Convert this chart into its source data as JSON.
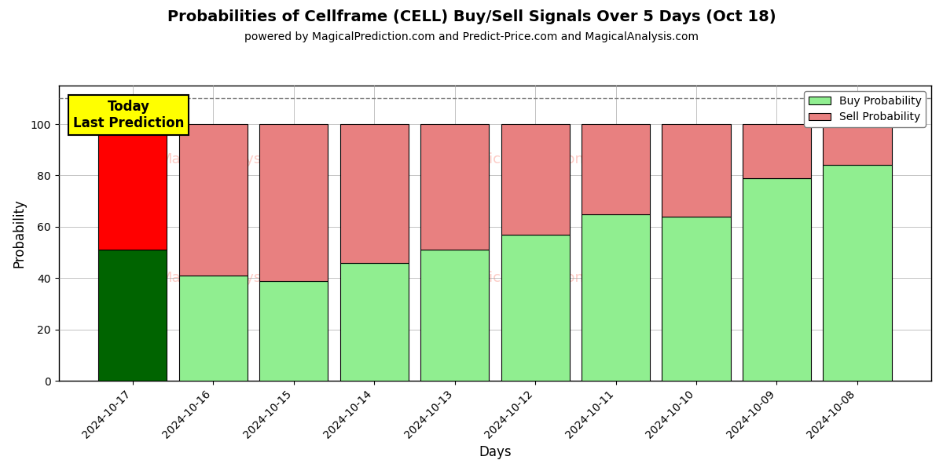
{
  "title": "Probabilities of Cellframe (CELL) Buy/Sell Signals Over 5 Days (Oct 18)",
  "subtitle": "powered by MagicalPrediction.com and Predict-Price.com and MagicalAnalysis.com",
  "xlabel": "Days",
  "ylabel": "Probability",
  "dates": [
    "2024-10-17",
    "2024-10-16",
    "2024-10-15",
    "2024-10-14",
    "2024-10-13",
    "2024-10-12",
    "2024-10-11",
    "2024-10-10",
    "2024-10-09",
    "2024-10-08"
  ],
  "buy_values": [
    51,
    41,
    39,
    46,
    51,
    57,
    65,
    64,
    79,
    84
  ],
  "sell_values": [
    49,
    59,
    61,
    54,
    49,
    43,
    35,
    36,
    21,
    16
  ],
  "today_bar_buy_color": "#006400",
  "today_bar_sell_color": "#ff0000",
  "other_bar_buy_color": "#90EE90",
  "other_bar_sell_color": "#E88080",
  "today_label_bg": "#ffff00",
  "today_label_text": "Today\nLast Prediction",
  "dashed_line_y": 110,
  "ylim": [
    0,
    115
  ],
  "yticks": [
    0,
    20,
    40,
    60,
    80,
    100
  ],
  "legend_buy": "Buy Probability",
  "legend_sell": "Sell Probability",
  "background_color": "#ffffff",
  "grid_color": "#aaaaaa",
  "bar_width": 0.85
}
